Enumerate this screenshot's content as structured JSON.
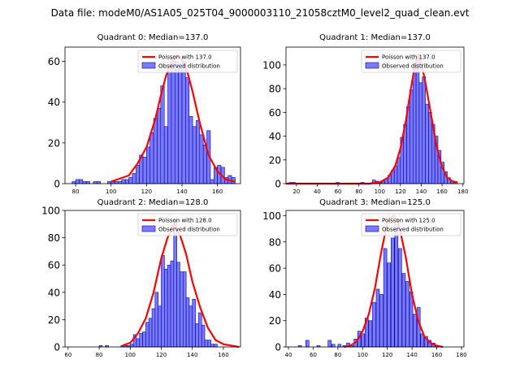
{
  "figure": {
    "title": "Data file: modeM0/AS1A05_025T04_9000003110_21058cztM0_level2_quad_clean.evt"
  },
  "colors": {
    "bar": "#7a7aff",
    "bar_edge": "#0000aa",
    "poisson": "#ff0000"
  },
  "chart_data": [
    {
      "type": "bar",
      "title": "Quadrant 0: Median=137.0",
      "legend": [
        "Poisson with 137.0",
        "Observed distribution"
      ],
      "legend_position": "top-right",
      "xlim": [
        74,
        173
      ],
      "ylim": [
        0,
        67
      ],
      "xticks": [
        80,
        100,
        120,
        140,
        160
      ],
      "yticks": [
        0,
        20,
        40,
        60
      ],
      "bin_width": 2,
      "bins": [
        [
          78,
          1
        ],
        [
          80,
          2
        ],
        [
          82,
          2
        ],
        [
          84,
          1
        ],
        [
          86,
          1
        ],
        [
          88,
          0
        ],
        [
          90,
          1
        ],
        [
          92,
          1
        ],
        [
          94,
          0
        ],
        [
          96,
          0
        ],
        [
          98,
          1
        ],
        [
          100,
          1
        ],
        [
          102,
          1
        ],
        [
          104,
          1
        ],
        [
          106,
          2
        ],
        [
          108,
          2
        ],
        [
          110,
          3
        ],
        [
          112,
          5
        ],
        [
          114,
          9
        ],
        [
          116,
          14
        ],
        [
          118,
          13
        ],
        [
          120,
          18
        ],
        [
          122,
          25
        ],
        [
          124,
          32
        ],
        [
          126,
          37
        ],
        [
          128,
          48
        ],
        [
          130,
          28
        ],
        [
          132,
          55
        ],
        [
          134,
          62
        ],
        [
          136,
          60
        ],
        [
          138,
          57
        ],
        [
          140,
          60
        ],
        [
          142,
          52
        ],
        [
          144,
          33
        ],
        [
          146,
          28
        ],
        [
          148,
          31
        ],
        [
          150,
          24
        ],
        [
          152,
          19
        ],
        [
          154,
          26
        ],
        [
          156,
          2
        ],
        [
          158,
          8
        ],
        [
          160,
          9
        ],
        [
          162,
          8
        ],
        [
          164,
          3
        ],
        [
          166,
          4
        ],
        [
          168,
          3
        ]
      ],
      "poisson": {
        "x": [
          100,
          110,
          115,
          120,
          125,
          128,
          131,
          134,
          137,
          140,
          143,
          146,
          150,
          155,
          160,
          165,
          170
        ],
        "y": [
          1,
          4,
          10,
          18,
          32,
          43,
          53,
          60,
          63,
          61,
          55,
          45,
          30,
          14,
          6,
          2,
          1
        ]
      }
    },
    {
      "type": "bar",
      "title": "Quadrant 1: Median=137.0",
      "legend": [
        "Poisson with 137.0",
        "Observed distribution"
      ],
      "legend_position": "top-right",
      "xlim": [
        10,
        181
      ],
      "ylim": [
        0,
        115
      ],
      "xticks": [
        20,
        40,
        60,
        80,
        100,
        120,
        140,
        160,
        180
      ],
      "yticks": [
        0,
        20,
        40,
        60,
        80,
        100
      ],
      "bin_width": 3,
      "bins": [
        [
          13,
          1
        ],
        [
          16,
          1
        ],
        [
          58,
          1
        ],
        [
          82,
          1
        ],
        [
          93,
          3
        ],
        [
          96,
          2
        ],
        [
          99,
          1
        ],
        [
          102,
          2
        ],
        [
          105,
          4
        ],
        [
          108,
          7
        ],
        [
          111,
          11
        ],
        [
          114,
          15
        ],
        [
          117,
          22
        ],
        [
          120,
          39
        ],
        [
          123,
          50
        ],
        [
          126,
          65
        ],
        [
          129,
          79
        ],
        [
          132,
          97
        ],
        [
          135,
          105
        ],
        [
          138,
          85
        ],
        [
          141,
          90
        ],
        [
          144,
          67
        ],
        [
          147,
          60
        ],
        [
          150,
          50
        ],
        [
          153,
          40
        ],
        [
          156,
          28
        ],
        [
          159,
          18
        ],
        [
          162,
          10
        ],
        [
          165,
          5
        ],
        [
          168,
          2
        ],
        [
          171,
          1
        ]
      ],
      "poisson": {
        "x": [
          10,
          90,
          100,
          108,
          115,
          120,
          125,
          130,
          134,
          137,
          140,
          144,
          150,
          155,
          160,
          165,
          170,
          175
        ],
        "y": [
          0,
          0,
          1,
          5,
          15,
          30,
          52,
          80,
          100,
          108,
          102,
          85,
          55,
          30,
          14,
          5,
          2,
          1
        ]
      }
    },
    {
      "type": "bar",
      "title": "Quadrant 2: Median=128.0",
      "legend": [
        "Poisson with 128.0",
        "Observed distribution"
      ],
      "legend_position": "top-right",
      "xlim": [
        58,
        171
      ],
      "ylim": [
        0,
        100
      ],
      "xticks": [
        60,
        80,
        100,
        120,
        140,
        160
      ],
      "yticks": [
        0,
        20,
        40,
        60,
        80,
        100
      ],
      "bin_width": 2,
      "bins": [
        [
          80,
          1
        ],
        [
          84,
          1
        ],
        [
          94,
          1
        ],
        [
          96,
          1
        ],
        [
          98,
          1
        ],
        [
          100,
          2
        ],
        [
          102,
          9
        ],
        [
          104,
          6
        ],
        [
          106,
          10
        ],
        [
          108,
          11
        ],
        [
          110,
          18
        ],
        [
          112,
          21
        ],
        [
          114,
          28
        ],
        [
          116,
          40
        ],
        [
          118,
          30
        ],
        [
          120,
          67
        ],
        [
          122,
          57
        ],
        [
          124,
          60
        ],
        [
          126,
          63
        ],
        [
          128,
          93
        ],
        [
          130,
          62
        ],
        [
          132,
          55
        ],
        [
          134,
          55
        ],
        [
          136,
          36
        ],
        [
          138,
          30
        ],
        [
          140,
          35
        ],
        [
          142,
          17
        ],
        [
          144,
          25
        ],
        [
          146,
          16
        ],
        [
          148,
          5
        ],
        [
          150,
          5
        ],
        [
          152,
          2
        ],
        [
          154,
          2
        ]
      ],
      "poisson": {
        "x": [
          95,
          100,
          105,
          110,
          115,
          120,
          124,
          128,
          132,
          136,
          140,
          145,
          150,
          155,
          160,
          165,
          170
        ],
        "y": [
          1,
          3,
          10,
          21,
          40,
          65,
          80,
          90,
          82,
          68,
          48,
          29,
          14,
          5,
          2,
          1,
          0
        ]
      }
    },
    {
      "type": "bar",
      "title": "Quadrant 3: Median=125.0",
      "legend": [
        "Poisson with 125.0",
        "Observed distribution"
      ],
      "legend_position": "top-right",
      "xlim": [
        38,
        182
      ],
      "ylim": [
        0,
        104
      ],
      "xticks": [
        40,
        60,
        80,
        100,
        120,
        140,
        160,
        180
      ],
      "yticks": [
        0,
        20,
        40,
        60,
        80,
        100
      ],
      "bin_width": 2.6,
      "bins": [
        [
          48,
          1
        ],
        [
          54,
          5
        ],
        [
          63,
          1
        ],
        [
          72,
          5
        ],
        [
          75,
          2
        ],
        [
          80,
          2
        ],
        [
          84,
          1
        ],
        [
          87,
          3
        ],
        [
          90,
          1
        ],
        [
          93,
          6
        ],
        [
          96,
          12
        ],
        [
          99,
          10
        ],
        [
          102,
          22
        ],
        [
          105,
          20
        ],
        [
          108,
          34
        ],
        [
          111,
          44
        ],
        [
          114,
          40
        ],
        [
          117,
          75
        ],
        [
          120,
          64
        ],
        [
          123,
          83
        ],
        [
          126,
          94
        ],
        [
          129,
          75
        ],
        [
          132,
          56
        ],
        [
          135,
          50
        ],
        [
          138,
          42
        ],
        [
          141,
          25
        ],
        [
          144,
          30
        ],
        [
          147,
          10
        ],
        [
          150,
          8
        ],
        [
          153,
          5
        ],
        [
          156,
          3
        ],
        [
          159,
          1
        ]
      ],
      "poisson": {
        "x": [
          85,
          90,
          95,
          100,
          105,
          110,
          115,
          120,
          125,
          128,
          131,
          135,
          140,
          145,
          150,
          155,
          160,
          165
        ],
        "y": [
          0,
          1,
          4,
          12,
          25,
          45,
          72,
          95,
          100,
          97,
          86,
          68,
          40,
          20,
          8,
          3,
          1,
          0
        ]
      }
    }
  ]
}
